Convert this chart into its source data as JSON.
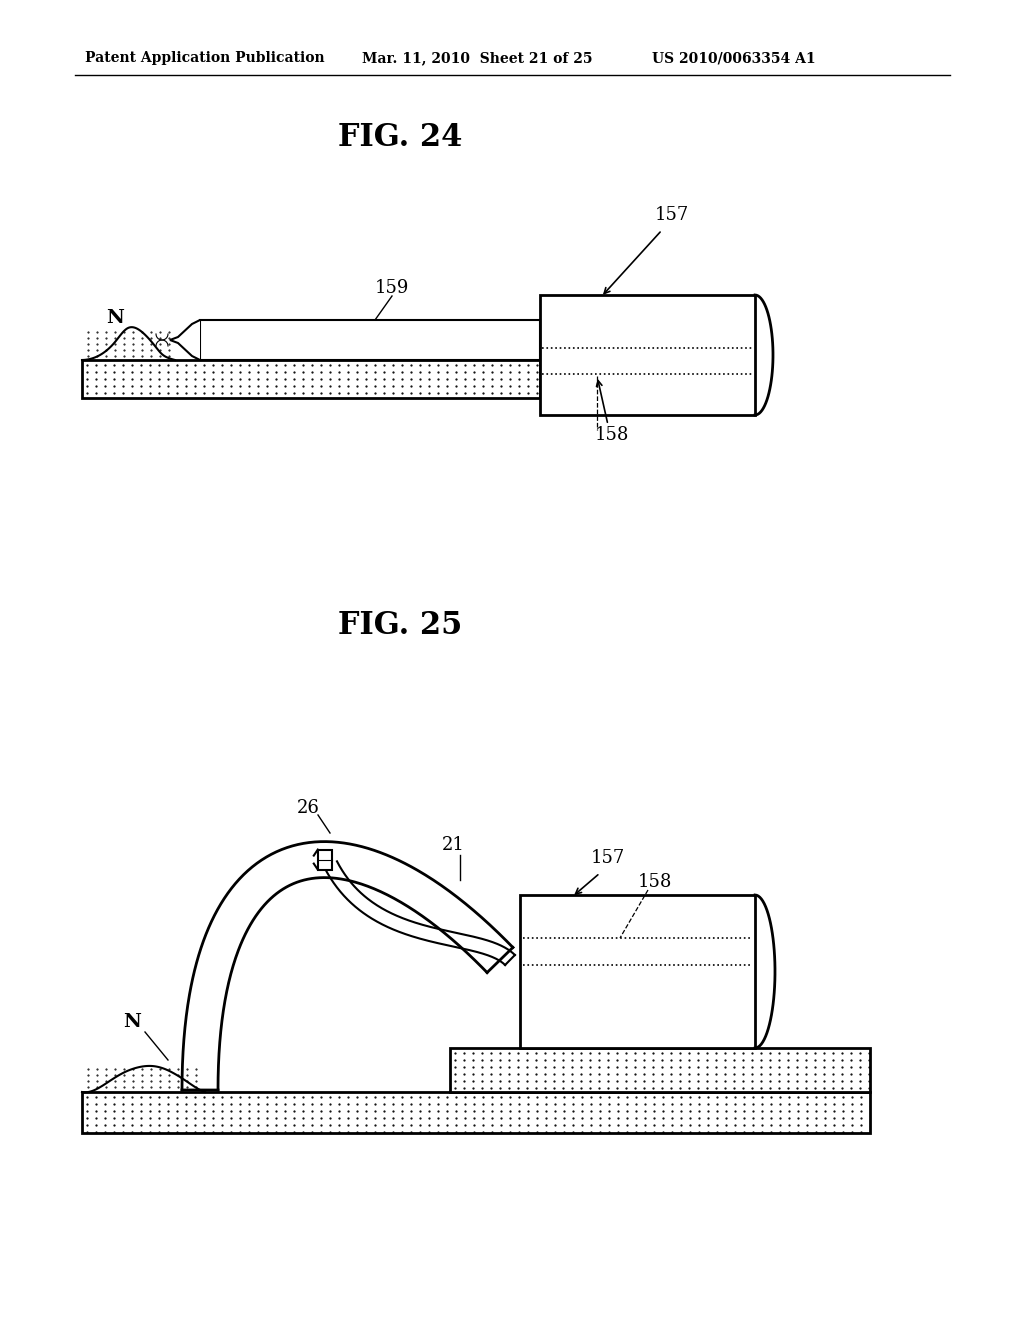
{
  "bg_color": "#ffffff",
  "header_left": "Patent Application Publication",
  "header_mid": "Mar. 11, 2010  Sheet 21 of 25",
  "header_right": "US 2010/0063354 A1",
  "fig24_title": "FIG. 24",
  "fig25_title": "FIG. 25",
  "label_157_fig24": "157",
  "label_158_fig24": "158",
  "label_159_fig24": "159",
  "label_N_fig24": "N",
  "label_157_fig25": "157",
  "label_158_fig25": "158",
  "label_21_fig25": "21",
  "label_26_fig25": "26",
  "label_N_fig25": "N"
}
